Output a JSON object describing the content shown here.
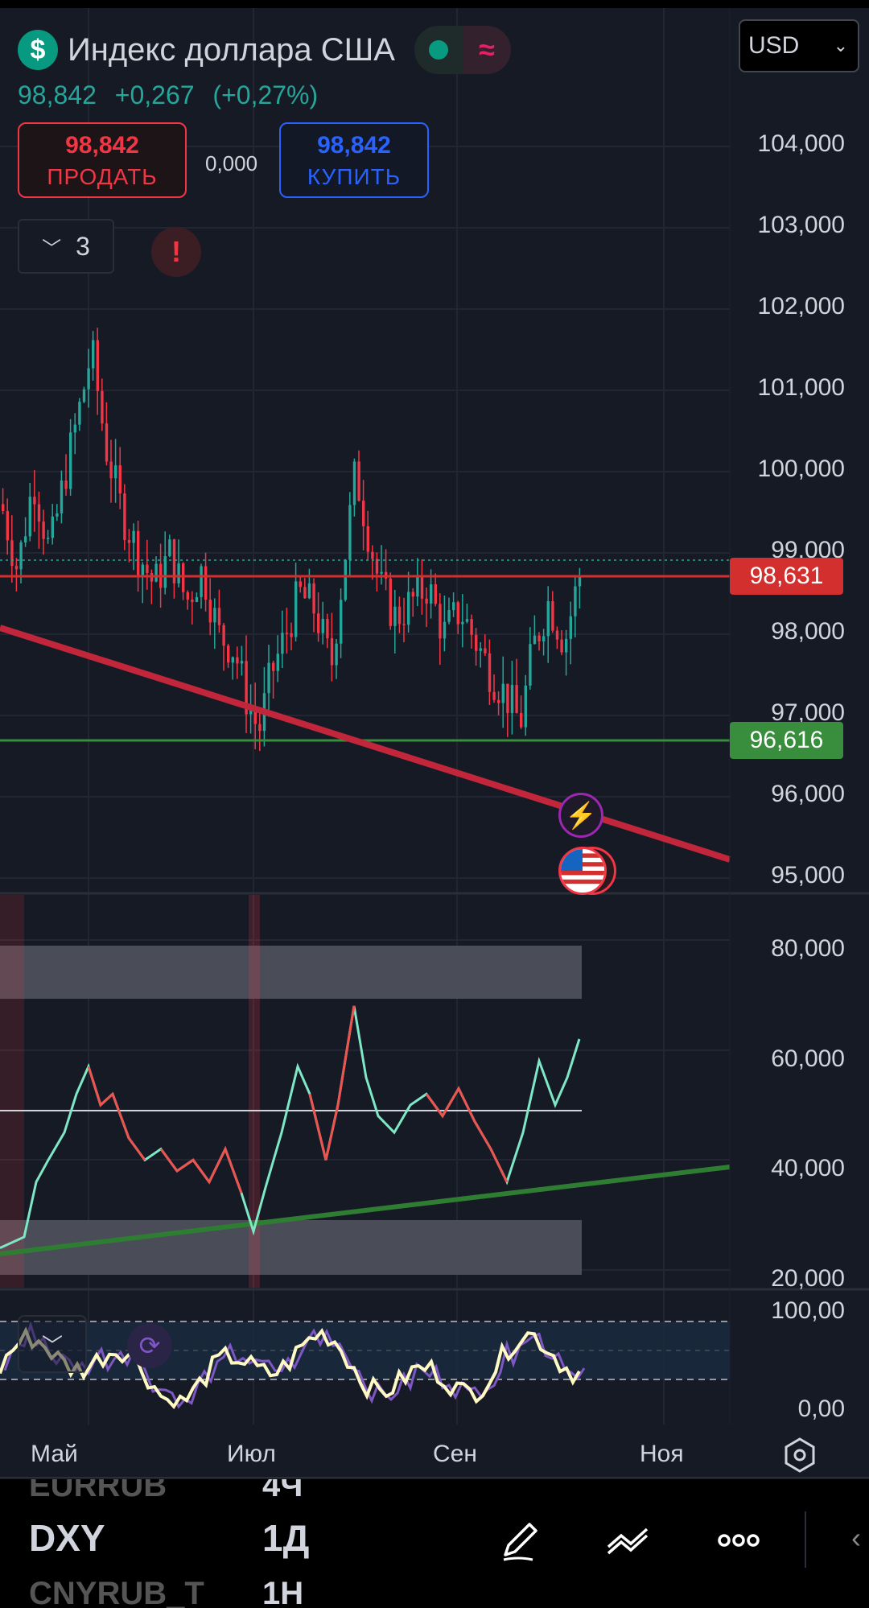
{
  "header": {
    "title": "Индекс доллара США",
    "currency": "USD",
    "last_price": "98,842",
    "change": "+0,267",
    "change_pct": "(+0,27%)"
  },
  "trade": {
    "sell_price": "98,842",
    "sell_label": "ПРОДАТЬ",
    "spread": "0,000",
    "buy_price": "98,842",
    "buy_label": "КУПИТЬ"
  },
  "indicators": {
    "count": "3"
  },
  "price_axis": [
    "104,000",
    "103,000",
    "102,000",
    "101,000",
    "100,000",
    "99,000",
    "98,000",
    "97,000",
    "96,000",
    "95,000"
  ],
  "price_tags": {
    "red": "98,631",
    "green": "96,616"
  },
  "rsi_axis": [
    "80,000",
    "60,000",
    "40,000",
    "20,000"
  ],
  "stoch_axis": [
    "100,00",
    "0,00"
  ],
  "x_axis": [
    "Май",
    "Июл",
    "Сен",
    "Ноя"
  ],
  "bottom": {
    "ticker_prev": "EURRUB",
    "tf_prev": "4Ч",
    "ticker": "DXY",
    "timeframe": "1Д",
    "ticker_next": "CNYRUB_T",
    "tf_next": "1Н"
  },
  "colors": {
    "up": "#26a69a",
    "down": "#f23645",
    "bg": "#161a25"
  }
}
